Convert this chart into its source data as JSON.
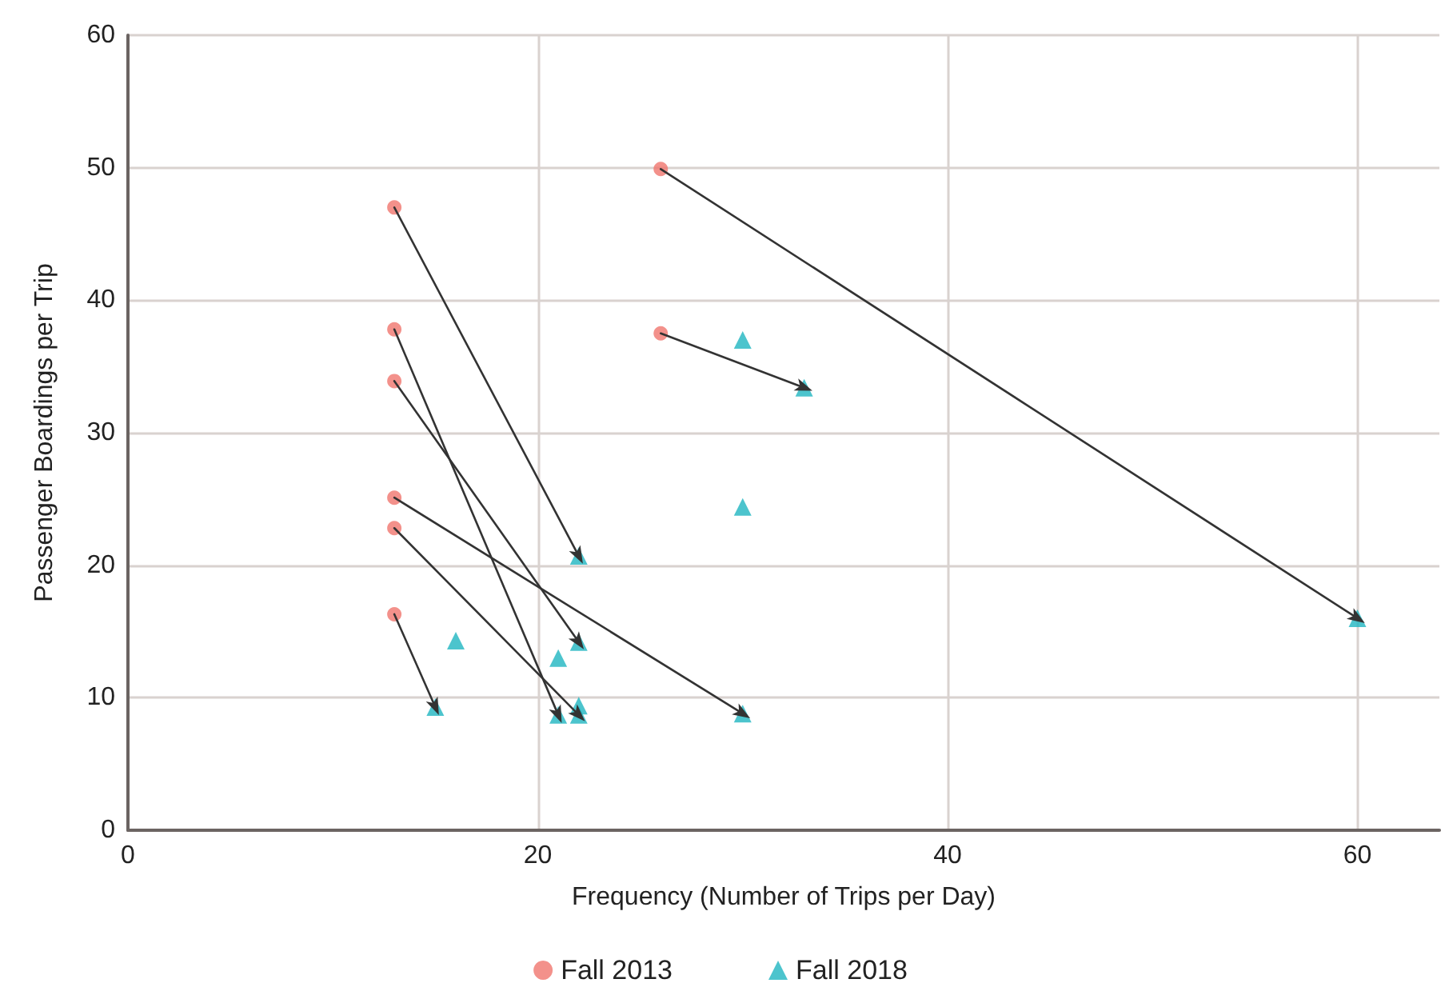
{
  "chart_data": {
    "type": "scatter",
    "xlabel": "Frequency (Number of Trips per Day)",
    "ylabel": "Passenger Boardings per Trip",
    "xlim": [
      0,
      64
    ],
    "xticks": [
      0,
      20,
      40,
      60
    ],
    "ylim": [
      0,
      60
    ],
    "yticks": [
      0,
      10,
      20,
      30,
      40,
      50,
      60
    ],
    "grid": true,
    "legend": "bottom",
    "series": [
      {
        "name": "Fall 2013",
        "marker": "circle",
        "color": "#f0766e",
        "x": [
          13,
          13,
          13,
          13,
          13,
          13,
          26,
          26
        ],
        "values": [
          47,
          37.8,
          33.9,
          25.1,
          22.8,
          16.3,
          49.9,
          37.5
        ]
      },
      {
        "name": "Fall 2018",
        "marker": "triangle",
        "color": "#1fb5c0",
        "x": [
          30,
          33,
          30,
          22,
          22,
          21,
          16,
          15,
          21,
          22,
          22,
          30,
          60
        ],
        "values": [
          37,
          33.4,
          24.4,
          20.7,
          14.2,
          13,
          14.3,
          9.3,
          8.7,
          9.4,
          8.7,
          8.8,
          16
        ]
      },
      {
        "type": "line",
        "color": "#333333",
        "x": [
          13,
          22
        ],
        "values": [
          47,
          20.7
        ]
      },
      {
        "type": "line",
        "color": "#333333",
        "x": [
          13,
          21
        ],
        "values": [
          37.8,
          8.7
        ]
      },
      {
        "type": "line",
        "color": "#333333",
        "x": [
          13,
          22
        ],
        "values": [
          33.9,
          14.2
        ]
      },
      {
        "type": "line",
        "color": "#333333",
        "x": [
          13,
          30
        ],
        "values": [
          25.1,
          8.8
        ]
      },
      {
        "type": "line",
        "color": "#333333",
        "x": [
          13,
          22
        ],
        "values": [
          22.8,
          8.7
        ]
      },
      {
        "type": "line",
        "color": "#333333",
        "x": [
          13,
          15
        ],
        "values": [
          16.3,
          9.3
        ]
      },
      {
        "type": "line",
        "color": "#333333",
        "x": [
          26,
          60
        ],
        "values": [
          49.9,
          16
        ]
      },
      {
        "type": "line",
        "color": "#333333",
        "x": [
          26,
          33
        ],
        "values": [
          37.5,
          33.4
        ]
      }
    ]
  }
}
